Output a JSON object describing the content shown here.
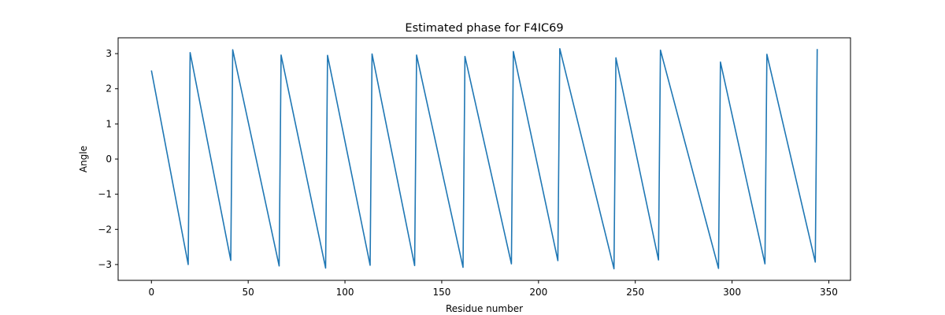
{
  "chart_data": {
    "type": "line",
    "title": "Estimated phase for F4IC69",
    "xlabel": "Residue number",
    "ylabel": "Angle",
    "xlim": [
      -17.2,
      361.2
    ],
    "ylim": [
      -3.45,
      3.45
    ],
    "xticks": [
      0,
      50,
      100,
      150,
      200,
      250,
      300,
      350
    ],
    "yticks": [
      -3,
      -2,
      -1,
      0,
      1,
      2,
      3
    ],
    "grid": false,
    "color": "#1f77b4",
    "segments": [
      {
        "start": 0,
        "end": 19,
        "start_angle": 2.52,
        "end_angle": -3.0
      },
      {
        "start": 20,
        "end": 41,
        "start_angle": 3.03,
        "end_angle": -2.88
      },
      {
        "start": 42,
        "end": 66,
        "start_angle": 3.11,
        "end_angle": -3.04
      },
      {
        "start": 67,
        "end": 90,
        "start_angle": 2.96,
        "end_angle": -3.1
      },
      {
        "start": 91,
        "end": 113,
        "start_angle": 2.95,
        "end_angle": -3.02
      },
      {
        "start": 114,
        "end": 136,
        "start_angle": 2.99,
        "end_angle": -3.03
      },
      {
        "start": 137,
        "end": 161,
        "start_angle": 2.96,
        "end_angle": -3.08
      },
      {
        "start": 162,
        "end": 186,
        "start_angle": 2.92,
        "end_angle": -2.98
      },
      {
        "start": 187,
        "end": 210,
        "start_angle": 3.06,
        "end_angle": -2.89
      },
      {
        "start": 211,
        "end": 239,
        "start_angle": 3.14,
        "end_angle": -3.12
      },
      {
        "start": 240,
        "end": 262,
        "start_angle": 2.88,
        "end_angle": -2.87
      },
      {
        "start": 263,
        "end": 293,
        "start_angle": 3.1,
        "end_angle": -3.11
      },
      {
        "start": 294,
        "end": 317,
        "start_angle": 2.76,
        "end_angle": -2.98
      },
      {
        "start": 318,
        "end": 343,
        "start_angle": 2.98,
        "end_angle": -2.93
      },
      {
        "start": 344,
        "end": 344,
        "start_angle": 3.13,
        "end_angle": 3.13
      }
    ]
  }
}
